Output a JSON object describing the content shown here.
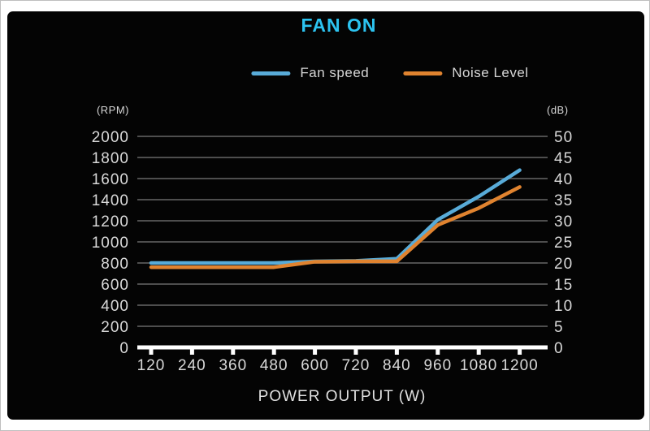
{
  "header": {
    "title": "FAN ON"
  },
  "legend": {
    "items": [
      {
        "label": "Fan speed",
        "color": "#58abd8"
      },
      {
        "label": "Noise Level",
        "color": "#e0832f"
      }
    ]
  },
  "axes": {
    "left_unit": "(RPM)",
    "right_unit": "(dB)",
    "x_title": "POWER OUTPUT (W)"
  },
  "colors": {
    "title": "#2cc3f0",
    "grid": "#4e4e4e",
    "axis": "#ffffff",
    "text": "#d9d9d9",
    "panel_bg": "#040404",
    "page_bg": "#ffffff",
    "fan_speed": "#58abd8",
    "noise_level": "#e0832f"
  },
  "chart_data": {
    "type": "line",
    "title": "FAN ON",
    "xlabel": "POWER OUTPUT (W)",
    "grid": true,
    "legend_position": "top",
    "x": [
      120,
      240,
      360,
      480,
      600,
      720,
      840,
      960,
      1080,
      1200
    ],
    "left_axis": {
      "unit": "(RPM)",
      "min": 0,
      "max": 2000,
      "step": 200,
      "ticks": [
        0,
        200,
        400,
        600,
        800,
        1000,
        1200,
        1400,
        1600,
        1800,
        2000
      ]
    },
    "right_axis": {
      "unit": "(dB)",
      "min": 0,
      "max": 50,
      "step": 5,
      "ticks": [
        0,
        5,
        10,
        15,
        20,
        25,
        30,
        35,
        40,
        45,
        50
      ]
    },
    "series": [
      {
        "name": "Fan speed",
        "axis": "left",
        "unit": "RPM",
        "color": "#58abd8",
        "values": [
          800,
          800,
          800,
          800,
          815,
          820,
          840,
          1210,
          1430,
          1680
        ]
      },
      {
        "name": "Noise Level",
        "axis": "right",
        "unit": "dB",
        "color": "#e0832f",
        "values": [
          19,
          19,
          19,
          19,
          20.3,
          20.4,
          20.4,
          29,
          33,
          38
        ]
      }
    ]
  }
}
